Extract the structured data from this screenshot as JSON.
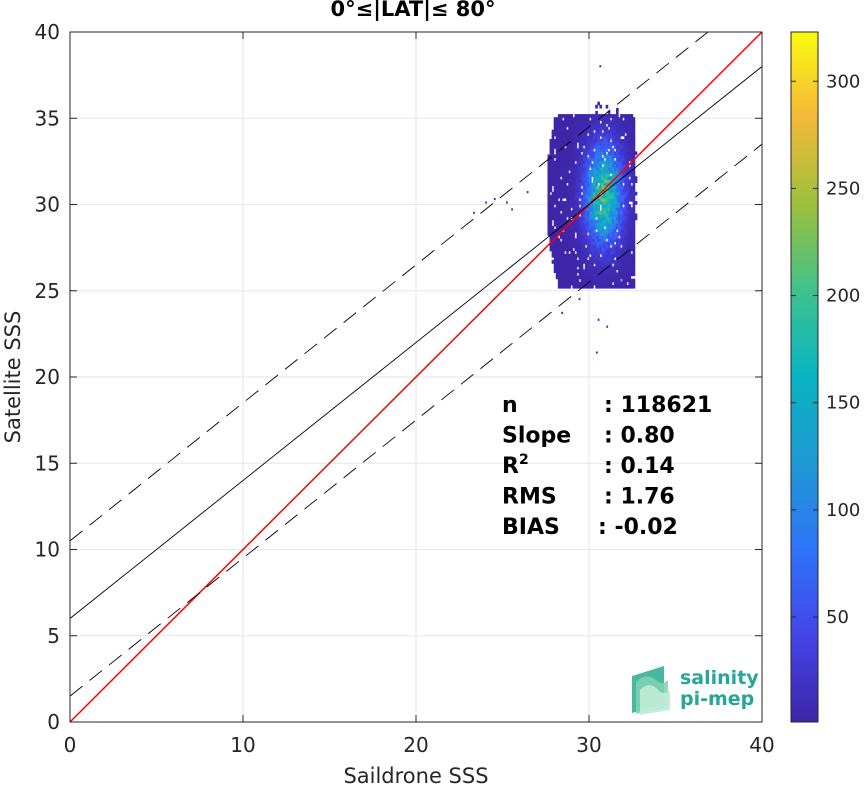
{
  "chart_data": {
    "type": "heatmap",
    "title": "0°≤|LAT|≤ 80°",
    "xlabel": "Saildrone SSS",
    "ylabel": "Satellite SSS",
    "xlim": [
      0,
      40
    ],
    "ylim": [
      0,
      40
    ],
    "xticks": [
      "0",
      "10",
      "20",
      "30",
      "40"
    ],
    "yticks": [
      "0",
      "5",
      "10",
      "15",
      "20",
      "25",
      "30",
      "35",
      "40"
    ],
    "grid": true,
    "colorbar": {
      "range": [
        1,
        323
      ],
      "ticks": [
        "50",
        "100",
        "150",
        "200",
        "250",
        "300"
      ],
      "tick_values": [
        50,
        100,
        150,
        200,
        250,
        300
      ],
      "colormap": "parula"
    },
    "density_cluster": {
      "x_center": 30.8,
      "y_center": 30.5,
      "x_range": [
        27.0,
        32.7
      ],
      "y_range": [
        21.2,
        37.9
      ],
      "peak_count": 323
    },
    "lines": [
      {
        "name": "one-to-one",
        "color": "#ff0000",
        "intercept": 0,
        "slope": 1,
        "style": "solid"
      },
      {
        "name": "regression",
        "color": "#000000",
        "intercept": 6.0,
        "slope": 0.8,
        "style": "solid"
      },
      {
        "name": "upper-bound",
        "color": "#000000",
        "intercept": 10.5,
        "slope": 0.8,
        "style": "dashed"
      },
      {
        "name": "lower-bound",
        "color": "#000000",
        "intercept": 1.5,
        "slope": 0.8,
        "style": "dashed"
      }
    ],
    "stats": [
      {
        "label": "n",
        "value": ": 118621"
      },
      {
        "label": "Slope",
        "value": ": 0.80"
      },
      {
        "label": "R",
        "sup": "2",
        "value": ": 0.14"
      },
      {
        "label": "RMS",
        "value": ": 1.76"
      },
      {
        "label": "BIAS",
        "value": ": -0.02"
      }
    ]
  },
  "logo": {
    "line1": "salinity",
    "line2": "pi-mep",
    "color": "#26a69a"
  }
}
